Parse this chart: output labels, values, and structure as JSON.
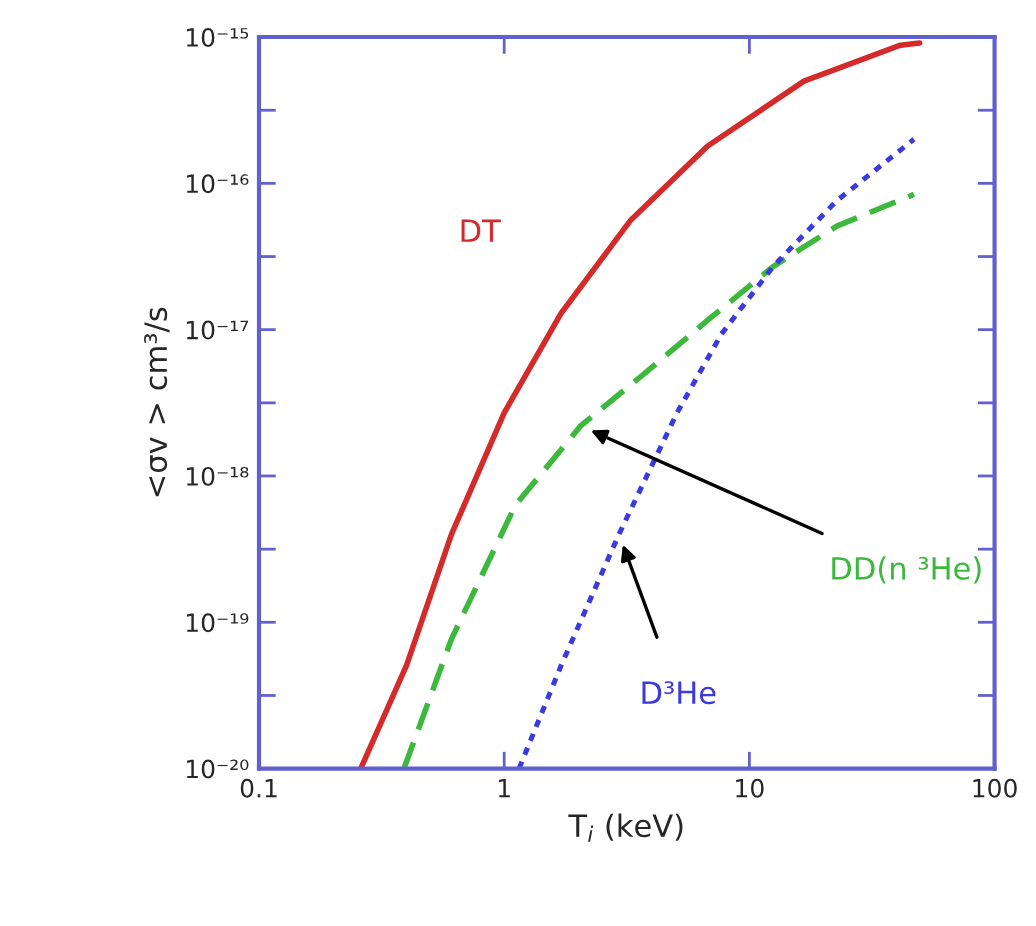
{
  "chart_data": {
    "type": "line",
    "xlabel": "T$_{i}$ (keV)",
    "ylabel": "<σv > cm³/s",
    "log": "xy",
    "grid": false,
    "legend": false,
    "xlim": [
      0.1,
      100
    ],
    "xticks": [
      0.1,
      1,
      10,
      100
    ],
    "ylim": [
      1e-20,
      1e-15
    ],
    "yticks": [
      {
        "value": 1e-20,
        "label": "10⁻²⁰"
      },
      {
        "value": 3.16e-20,
        "label": null
      },
      {
        "value": 1e-19,
        "label": "10⁻¹⁹"
      },
      {
        "value": 3.16e-19,
        "label": null
      },
      {
        "value": 1e-18,
        "label": "10⁻¹⁸"
      },
      {
        "value": 3.16e-18,
        "label": null
      },
      {
        "value": 1e-17,
        "label": "10⁻¹⁷"
      },
      {
        "value": 3.16e-17,
        "label": null
      },
      {
        "value": 1e-16,
        "label": "10⁻¹⁶"
      },
      {
        "value": 3.16e-16,
        "label": null
      },
      {
        "value": 1e-15,
        "label": "10⁻¹⁵"
      }
    ],
    "series": [
      {
        "name": "DT",
        "color": "#d42a2a",
        "line_style": "solid",
        "x": [
          0.26,
          0.4,
          0.61,
          1.0,
          1.71,
          3.28,
          6.76,
          16.7,
          41.3,
          49.5
        ],
        "values": [
          1e-20,
          5.1e-20,
          4e-19,
          2.7e-18,
          1.3e-17,
          5.6e-17,
          1.8e-16,
          5e-16,
          8.8e-16,
          9.1e-16
        ]
      },
      {
        "name": "DD(n ³He)",
        "color": "#3cb83c",
        "line_style": "dashed",
        "x": [
          0.39,
          0.61,
          1.11,
          2.05,
          3.73,
          6.76,
          12.5,
          22.7,
          46.9
        ],
        "values": [
          1e-20,
          7.7e-20,
          6.3e-19,
          2.2e-18,
          5e-18,
          1.16e-17,
          2.7e-17,
          5.1e-17,
          8.4e-17
        ]
      },
      {
        "name": "D³He",
        "color": "#3a3ae0",
        "line_style": "dotted",
        "x": [
          1.15,
          1.71,
          2.94,
          5.07,
          7.68,
          12.5,
          22.7,
          46.9
        ],
        "values": [
          1e-20,
          5.1e-20,
          4e-19,
          2.7e-18,
          9.3e-18,
          2.7e-17,
          7.6e-17,
          2e-16
        ]
      }
    ]
  }
}
